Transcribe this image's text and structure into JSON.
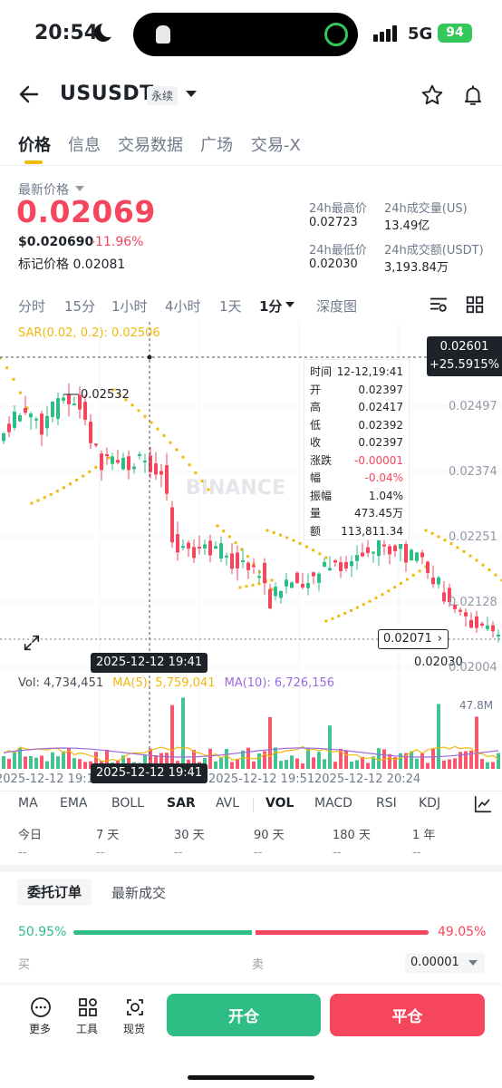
{
  "status_bar": {
    "time": "20:54",
    "network": "5G",
    "battery": "94"
  },
  "header": {
    "pair": "USUSDT",
    "contract_type": "永续"
  },
  "tabs": [
    "价格",
    "信息",
    "交易数据",
    "广场",
    "交易-X"
  ],
  "price": {
    "last_label": "最新价格",
    "last_price": "0.02069",
    "usd_price": "$0.020690",
    "change": "-11.96%",
    "mark_price": "标记价格 0.02081"
  },
  "stats": {
    "high_label": "24h最高价",
    "high": "0.02723",
    "vol_label": "24h成交量(US)",
    "vol": "13.49亿",
    "low_label": "24h最低价",
    "low": "0.02030",
    "amount_label": "24h成交额(USDT)",
    "amount": "3,193.84万"
  },
  "intervals": [
    "分时",
    "15分",
    "1小时",
    "4小时",
    "1天",
    "1分",
    "深度图"
  ],
  "chart": {
    "sar_label": "SAR(0.02, 0.2): 0.02506",
    "axis_labels": [
      "0.02497",
      "0.02374",
      "0.02251",
      "0.02128",
      "0.02004"
    ],
    "crosshair_price": "0.02601",
    "crosshair_pct": "+25.5915%",
    "high_marker": "0.02532",
    "low_marker": "0.02030",
    "current_price": "0.02071",
    "watermark": "BINANCE",
    "crosshair_date": "2025-12-12 19:41",
    "tooltip": [
      {
        "k": "时间",
        "v": "12-12,19:41"
      },
      {
        "k": "开",
        "v": "0.02397"
      },
      {
        "k": "高",
        "v": "0.02417"
      },
      {
        "k": "低",
        "v": "0.02392"
      },
      {
        "k": "收",
        "v": "0.02397"
      },
      {
        "k": "涨跌",
        "v": "-0.00001"
      },
      {
        "k": "幅",
        "v": "-0.04%"
      },
      {
        "k": "振幅",
        "v": "1.04%"
      },
      {
        "k": "量",
        "v": "473.45万"
      },
      {
        "k": "额",
        "v": "113,811.34"
      }
    ],
    "vol_legend": {
      "vol": "Vol: 4,734,451",
      "ma5": "MA(5): 5,759,041",
      "ma10": "MA(10): 6,726,156"
    },
    "vol_max": "47.8M",
    "time_labels": [
      "2025-12-12 19:18",
      "2025-12-12 19:51",
      "2025-12-12 20:24"
    ],
    "colors": {
      "up": "#2ebd85",
      "down": "#f6465d",
      "sar": "#f0b90b",
      "ma10": "#9c6ade"
    }
  },
  "indicators": [
    "MA",
    "EMA",
    "BOLL",
    "SAR",
    "AVL",
    "VOL",
    "MACD",
    "RSI",
    "KDJ"
  ],
  "periods": [
    {
      "label": "今日",
      "value": "--"
    },
    {
      "label": "7 天",
      "value": "--"
    },
    {
      "label": "30 天",
      "value": "--"
    },
    {
      "label": "90 天",
      "value": "--"
    },
    {
      "label": "180 天",
      "value": "--"
    },
    {
      "label": "1 年",
      "value": "--"
    }
  ],
  "orders": {
    "tab_active": "委托订单",
    "tab_other": "最新成交",
    "buy_pct": "50.95%",
    "sell_pct": "49.05%",
    "buy_label": "买",
    "sell_label": "卖",
    "step": "0.00001"
  },
  "bottom": {
    "more": "更多",
    "tools": "工具",
    "spot": "现货",
    "open": "开仓",
    "close": "平仓"
  }
}
